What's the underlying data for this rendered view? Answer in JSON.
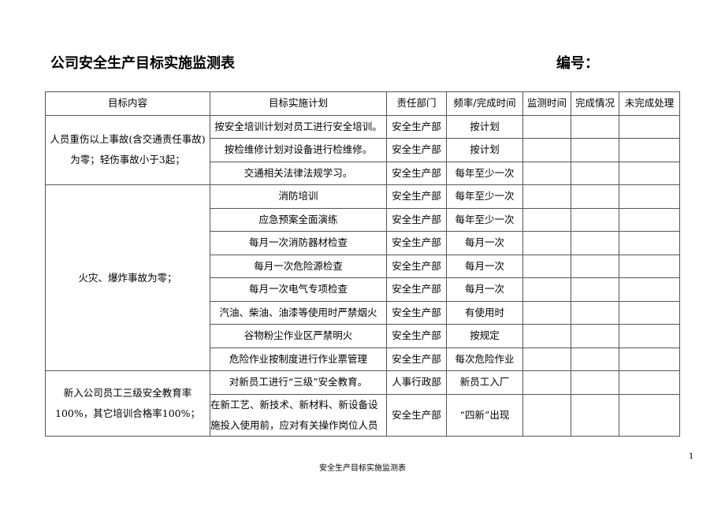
{
  "title": "公司安全生产目标实施监测表",
  "code_label": "编号：",
  "headers": [
    "目标内容",
    "目标实施计划",
    "责任部门",
    "频率/完成时间",
    "监测时间",
    "完成情况",
    "未完成处理"
  ],
  "groups": [
    {
      "goal": "人员重伤以上事故(含交通责任事故)为零；轻伤事故小于3起；",
      "rows": [
        {
          "plan": "按安全培训计划对员工进行安全培训。",
          "dept": "安全生产部",
          "freq": "按计划"
        },
        {
          "plan": "按检维修计划对设备进行检维修。",
          "dept": "安全生产部",
          "freq": "按计划"
        },
        {
          "plan": "交通相关法律法规学习。",
          "dept": "安全生产部",
          "freq": "每年至少一次"
        }
      ]
    },
    {
      "goal": "火灾、爆炸事故为零；",
      "rows": [
        {
          "plan": "消防培训",
          "dept": "安全生产部",
          "freq": "每年至少一次"
        },
        {
          "plan": "应急预案全面演练",
          "dept": "安全生产部",
          "freq": "每年至少一次"
        },
        {
          "plan": "每月一次消防器材检查",
          "dept": "安全生产部",
          "freq": "每月一次"
        },
        {
          "plan": "每月一次危险源检查",
          "dept": "安全生产部",
          "freq": "每月一次"
        },
        {
          "plan": "每月一次电气专项检查",
          "dept": "安全生产部",
          "freq": "每月一次"
        },
        {
          "plan": "汽油、柴油、油漆等使用时严禁烟火",
          "dept": "安全生产部",
          "freq": "有使用时"
        },
        {
          "plan": "谷物粉尘作业区严禁明火",
          "dept": "安全生产部",
          "freq": "按规定"
        },
        {
          "plan": "危险作业按制度进行作业票管理",
          "dept": "安全生产部",
          "freq": "每次危险作业"
        }
      ]
    },
    {
      "goal": "新入公司员工三级安全教育率100%，其它培训合格率100%；",
      "rows": [
        {
          "plan": "对新员工进行“三级”安全教育。",
          "dept": "人事行政部",
          "freq": "新员工入厂"
        },
        {
          "plan": "在新工艺、新技术、新材料、新设备设施投入使用前，应对有关操作岗位人员",
          "dept": "安全生产部",
          "freq": "“四新”出现"
        }
      ]
    }
  ],
  "page_number": "1",
  "footer": "安全生产目标实施监测表"
}
